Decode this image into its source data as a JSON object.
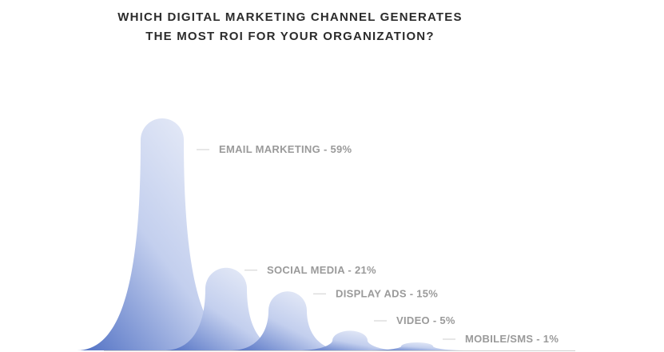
{
  "chart_data": {
    "type": "area",
    "title_lines": [
      "WHICH DIGITAL MARKETING CHANNEL GENERATES",
      "THE MOST ROI FOR YOUR ORGANIZATION?"
    ],
    "categories": [
      "EMAIL MARKETING",
      "SOCIAL MEDIA",
      "DISPLAY ADS",
      "VIDEO",
      "MOBILE/SMS"
    ],
    "values": [
      59,
      21,
      15,
      5,
      1
    ],
    "value_labels": [
      "EMAIL MARKETING - 59%",
      "SOCIAL MEDIA - 21%",
      "DISPLAY ADS - 15%",
      "VIDEO - 5%",
      "MOBILE/SMS - 1%"
    ],
    "unit": "%",
    "axes_visible": false,
    "grid": false,
    "legend": "none",
    "colors": {
      "peak_top": "#f4f6fb",
      "peak_bottom": "#4f6fc3",
      "label": "#9a9a9a",
      "leader": "#cfcfcf",
      "title": "#2b2b2b"
    }
  }
}
